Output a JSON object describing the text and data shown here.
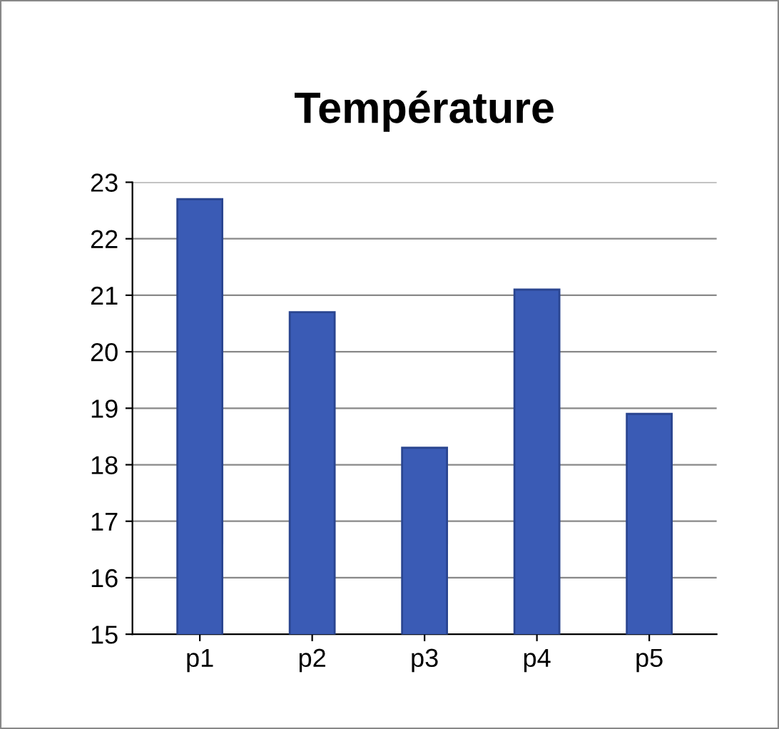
{
  "chart_data": {
    "type": "bar",
    "title": "Température",
    "categories": [
      "p1",
      "p2",
      "p3",
      "p4",
      "p5"
    ],
    "values": [
      22.7,
      20.7,
      18.3,
      21.1,
      18.9
    ],
    "color": "#3a5bb5",
    "ylim": [
      15,
      23
    ],
    "yticks": [
      15,
      16,
      17,
      18,
      19,
      20,
      21,
      22,
      23
    ],
    "grid": "y",
    "legend": false
  }
}
